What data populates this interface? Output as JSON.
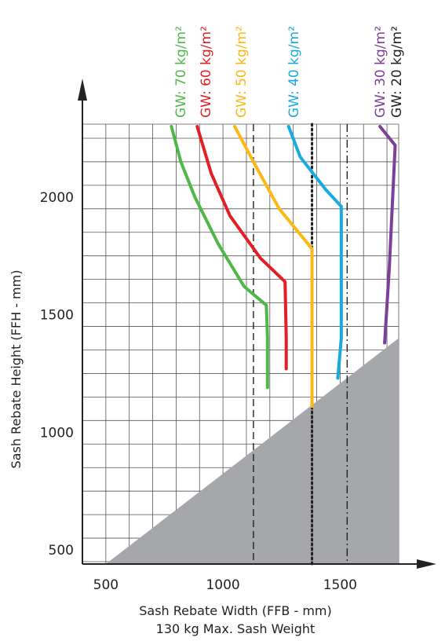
{
  "chart_data": {
    "type": "line",
    "title": "",
    "xlabel": "Sash Rebate Width (FFB - mm)",
    "xlabel2": "130 kg Max. Sash Weight",
    "ylabel": "Sash Rebate Height (FFH - mm)",
    "xlim": [
      400,
      1750
    ],
    "ylim": [
      440,
      2310
    ],
    "x_ticks": [
      500,
      1000,
      1500
    ],
    "y_ticks": [
      500,
      1000,
      1500,
      2000
    ],
    "grid": true,
    "grid_step": 100,
    "excluded_region_color": "#a6a7aa",
    "excluded_region": [
      [
        500,
        440
      ],
      [
        1750,
        440
      ],
      [
        1750,
        1400
      ]
    ],
    "series": [
      {
        "name": "GW: 70 kg/m²",
        "color": "#4fb848",
        "x": [
          780,
          820,
          880,
          980,
          1090,
          1185,
          1190,
          1190
        ],
        "y": [
          2300,
          2150,
          2000,
          1800,
          1620,
          1540,
          1400,
          1190
        ]
      },
      {
        "name": "GW: 60 kg/m²",
        "color": "#e31e26",
        "x": [
          890,
          950,
          1030,
          1160,
          1265,
          1270,
          1270
        ],
        "y": [
          2300,
          2100,
          1920,
          1740,
          1640,
          1400,
          1270
        ]
      },
      {
        "name": "GW: 50 kg/m²",
        "color": "#fcb813",
        "x": [
          1050,
          1130,
          1240,
          1380,
          1380,
          1380
        ],
        "y": [
          2300,
          2150,
          1950,
          1780,
          1400,
          1110
        ]
      },
      {
        "name": "GW: 40 kg/m²",
        "color": "#1aaae2",
        "x": [
          1280,
          1330,
          1440,
          1505,
          1505,
          1490
        ],
        "y": [
          2300,
          2170,
          2030,
          1960,
          1400,
          1230
        ]
      },
      {
        "name": "GW: 30 kg/m²",
        "color": "#7d3f98",
        "x": [
          1670,
          1735,
          1710,
          1690
        ],
        "y": [
          2300,
          2220,
          1700,
          1380
        ]
      },
      {
        "name": "GW: 20 kg/m²",
        "color": "#222222",
        "x": [],
        "y": []
      }
    ],
    "reference_lines": [
      {
        "x": 1130,
        "style": "dash-long",
        "color": "#222222"
      },
      {
        "x": 1380,
        "style": "dotted",
        "color": "#222222"
      },
      {
        "x": 1530,
        "style": "dash-dot",
        "color": "#222222"
      }
    ]
  }
}
